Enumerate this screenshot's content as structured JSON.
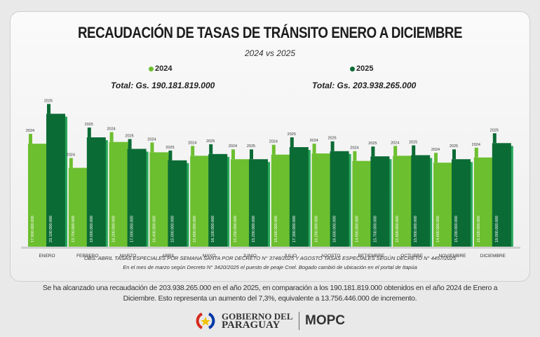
{
  "title": "RECAUDACIÓN DE TASAS DE TRÁNSITO ENERO A DICIEMBRE",
  "subtitle": "2024 vs 2025",
  "legend": [
    {
      "label": "2024",
      "color": "#6cbf2f",
      "total": "Total: Gs. 190.181.819.000"
    },
    {
      "label": "2025",
      "color": "#0b6b35",
      "total": "Total: Gs.  203.938.265.000"
    }
  ],
  "chart_data": {
    "type": "bar",
    "title": "RECAUDACIÓN DE TASAS DE TRÁNSITO ENERO A DICIEMBRE",
    "categories": [
      "ENERO",
      "FEBRERO",
      "MARZO",
      "ABRIL",
      "MAYO",
      "JUNIO",
      "JULIO",
      "AGOSTO",
      "BETIEMBRE",
      "OCTUBRE",
      "NOVIEMBRE",
      "DICIEMBRE"
    ],
    "series": [
      {
        "name": "2024",
        "color": "#6cbf2f",
        "values": [
          17900000000,
          13700000000,
          18200000000,
          16400000000,
          15800000000,
          15200000000,
          16000000000,
          16200000000,
          14900000000,
          15800000000,
          14600000000,
          15500000000
        ]
      },
      {
        "name": "2025",
        "color": "#0b6b35",
        "values": [
          23100000000,
          19000000000,
          17000000000,
          15000000000,
          16100000000,
          15200000000,
          17300000000,
          16600000000,
          15700000000,
          15900000000,
          15200000000,
          18000000000
        ]
      }
    ],
    "ylim": [
      0,
      25000000000
    ],
    "grid": false,
    "legend_placement": "top"
  },
  "notes": {
    "obs": "OBS: ABRIL TASAS ESPECIALES POR SEMANA SANTA POR DECRETO N° 3748/2025 Y AGOSTO TASAS ESPECIALES SEGÚN DECRETO N° 4457/2025",
    "marzo": "En el mes de marzo según Decreto N° 3420/2025 el puesto de peaje Cnel. Bogado cambió de ubicación en el portal de Itapúa"
  },
  "summary": "Se ha alcanzado una recaudación de 203.938.265.000 en el año 2025, en comparación a los 190.181.819.000 obtenidos en el año 2024 de Enero a Diciembre. Esto representa un aumento del 7,3%, equivalente a 13.756.446.000 de incremento.",
  "footer": {
    "gob_line1": "GOBIERNO DEL",
    "gob_line2": "PARAGUAY",
    "mopc": "MOPC"
  }
}
